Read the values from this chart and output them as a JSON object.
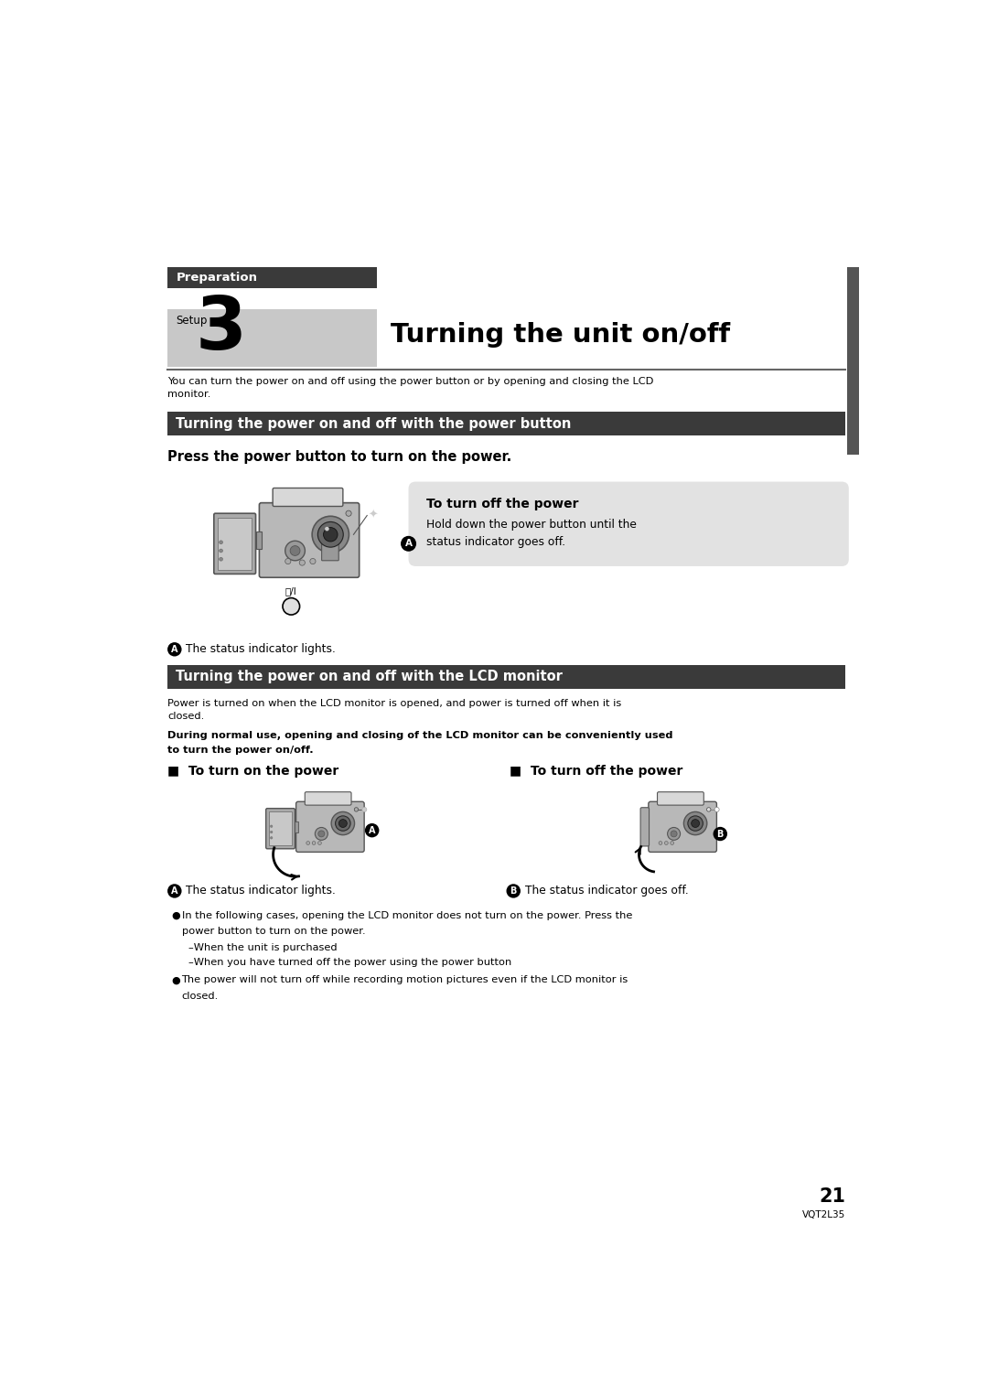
{
  "page_bg": "#ffffff",
  "page_width": 10.8,
  "page_height": 15.26,
  "header_box_color": "#3a3a3a",
  "header_label_text": "Preparation",
  "section_label_text": "Setup",
  "section_number": "3",
  "section_title": "Turning the unit on/off",
  "section_bg": "#c8c8c8",
  "sidebar_color": "#555555",
  "divider_color": "#444444",
  "intro_text": "You can turn the power on and off using the power button or by opening and closing the LCD\nmonitor.",
  "section1_bg": "#3a3a3a",
  "section1_text": "Turning the power on and off with the power button",
  "section1_text_color": "#ffffff",
  "press_text": "Press the power button to turn on the power.",
  "callout_bg": "#e2e2e2",
  "callout_title": "To turn off the power",
  "callout_body1": "Hold down the power button until the",
  "callout_body2": "status indicator goes off.",
  "label_a1_text": "The status indicator lights.",
  "section2_bg": "#3a3a3a",
  "section2_text": "Turning the power on and off with the LCD monitor",
  "section2_text_color": "#ffffff",
  "lcd_intro": "Power is turned on when the LCD monitor is opened, and power is turned off when it is\nclosed.",
  "lcd_bold1": "During normal use, opening and closing of the LCD monitor can be conveniently used",
  "lcd_bold2": "to turn the power on/off.",
  "turn_on_label": "■  To turn on the power",
  "turn_off_label": "■  To turn off the power",
  "label_a2_text": "The status indicator lights.",
  "label_b_text": "The status indicator goes off.",
  "bullet1_line1": "In the following cases, opening the LCD monitor does not turn on the power. Press the",
  "bullet1_line2": "power button to turn on the power.",
  "dash1": "–When the unit is purchased",
  "dash2": "–When you have turned off the power using the power button",
  "bullet2_line1": "The power will not turn off while recording motion pictures even if the LCD monitor is",
  "bullet2_line2": "closed.",
  "page_number": "21",
  "page_code": "VQT2L35"
}
